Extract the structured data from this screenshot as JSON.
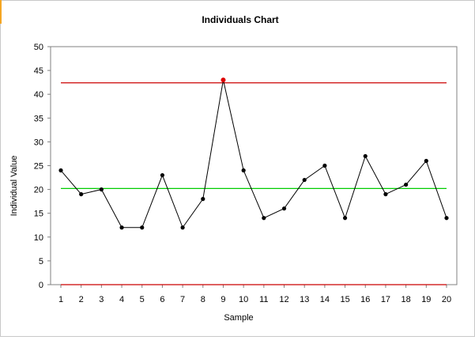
{
  "chart_data": {
    "type": "line",
    "title": "Individuals Chart",
    "xlabel": "Sample",
    "ylabel": "Individual Value",
    "x": [
      1,
      2,
      3,
      4,
      5,
      6,
      7,
      8,
      9,
      10,
      11,
      12,
      13,
      14,
      15,
      16,
      17,
      18,
      19,
      20
    ],
    "series": [
      {
        "values": [
          24,
          19,
          20,
          12,
          12,
          23,
          12,
          18,
          43,
          24,
          14,
          16,
          22,
          25,
          14,
          27,
          19,
          21,
          26,
          14
        ]
      }
    ],
    "ucl": 42.4,
    "center_line": 20.2,
    "lcl": 0,
    "ylim": [
      0,
      50
    ],
    "yticks": [
      0,
      5,
      10,
      15,
      20,
      25,
      30,
      35,
      40,
      45,
      50
    ],
    "out_of_control_points": [
      9
    ],
    "grid": false,
    "legend": "none",
    "colors": {
      "series": "#000000",
      "ucl": "#cc0000",
      "lcl": "#cc0000",
      "center_line": "#00cc00",
      "out_of_control": "#dd0000",
      "plot_border": "#808080"
    }
  }
}
